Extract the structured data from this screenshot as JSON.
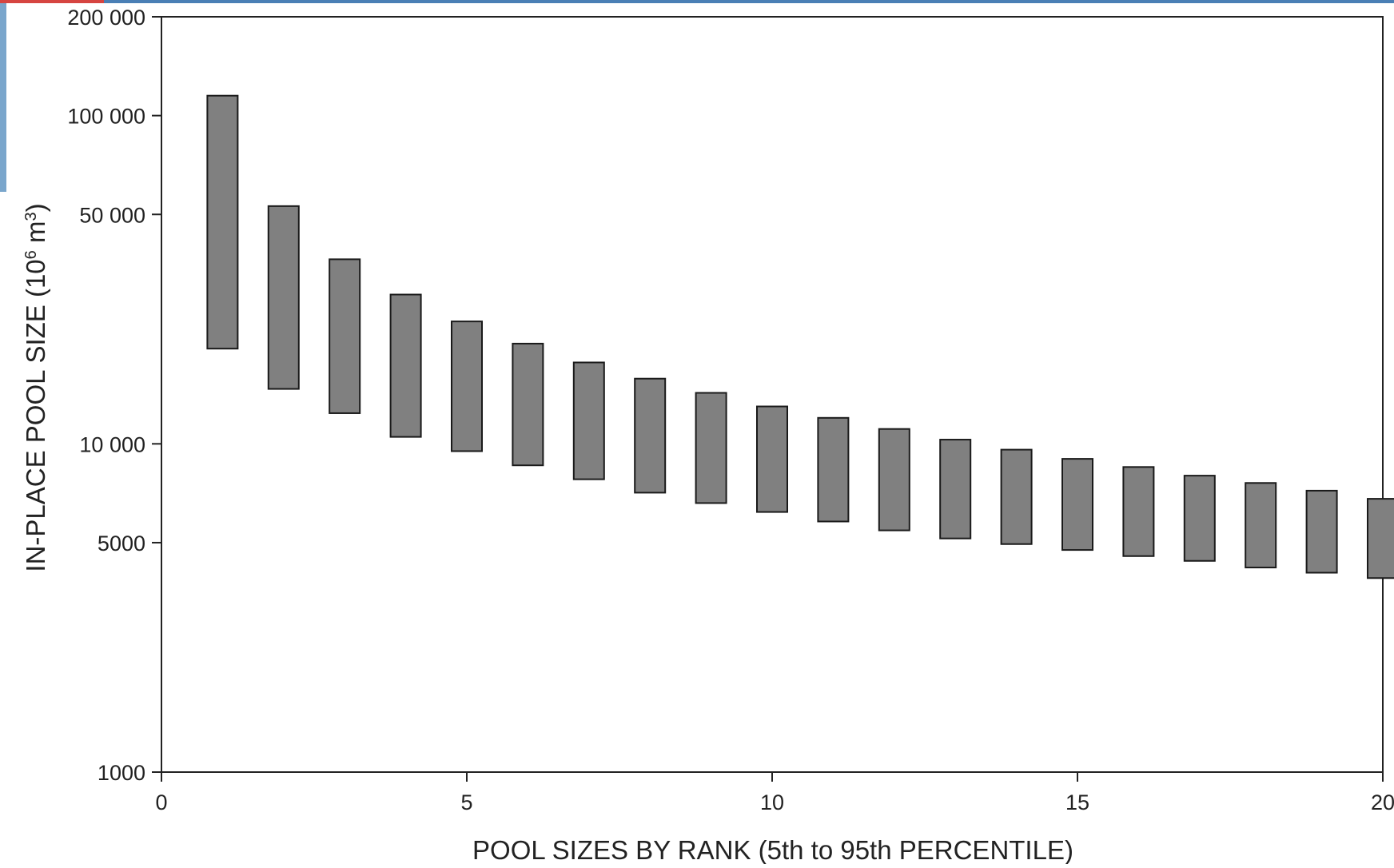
{
  "chart_data": {
    "type": "bar",
    "subtype": "floating-range",
    "xlabel": "POOL SIZES BY RANK  (5th to 95th PERCENTILE)",
    "ylabel": "IN-PLACE POOL SIZE (10⁶ m³)",
    "ylabel_parts": {
      "main": "IN-PLACE POOL SIZE (10",
      "sup1": "6",
      "mid": " m",
      "sup2": "3",
      "end": ")"
    },
    "x_scale": "linear",
    "y_scale": "log",
    "xlim": [
      0,
      20
    ],
    "ylim": [
      1000,
      200000
    ],
    "x_ticks": [
      {
        "value": 0,
        "label": "0"
      },
      {
        "value": 5,
        "label": "5"
      },
      {
        "value": 10,
        "label": "10"
      },
      {
        "value": 15,
        "label": "15"
      },
      {
        "value": 20,
        "label": "20"
      }
    ],
    "y_ticks": [
      {
        "value": 1000,
        "label": "1000"
      },
      {
        "value": 5000,
        "label": "5000"
      },
      {
        "value": 10000,
        "label": "10 000"
      },
      {
        "value": 50000,
        "label": "50 000"
      },
      {
        "value": 100000,
        "label": "100 000"
      },
      {
        "value": 200000,
        "label": "200 000"
      }
    ],
    "grid": false,
    "legend": "none",
    "bar_color": "#808080",
    "bar_edge_color": "#1a1a1a",
    "bars": [
      {
        "rank": 1,
        "low": 19500,
        "high": 115000
      },
      {
        "rank": 2,
        "low": 14700,
        "high": 53000
      },
      {
        "rank": 3,
        "low": 12400,
        "high": 36500
      },
      {
        "rank": 4,
        "low": 10500,
        "high": 28500
      },
      {
        "rank": 5,
        "low": 9500,
        "high": 23600
      },
      {
        "rank": 6,
        "low": 8600,
        "high": 20200
      },
      {
        "rank": 7,
        "low": 7800,
        "high": 17700
      },
      {
        "rank": 8,
        "low": 7100,
        "high": 15800
      },
      {
        "rank": 9,
        "low": 6600,
        "high": 14300
      },
      {
        "rank": 10,
        "low": 6200,
        "high": 13000
      },
      {
        "rank": 11,
        "low": 5800,
        "high": 12000
      },
      {
        "rank": 12,
        "low": 5450,
        "high": 11100
      },
      {
        "rank": 13,
        "low": 5150,
        "high": 10300
      },
      {
        "rank": 14,
        "low": 4950,
        "high": 9600
      },
      {
        "rank": 15,
        "low": 4750,
        "high": 9000
      },
      {
        "rank": 16,
        "low": 4550,
        "high": 8500
      },
      {
        "rank": 17,
        "low": 4400,
        "high": 8000
      },
      {
        "rank": 18,
        "low": 4200,
        "high": 7600
      },
      {
        "rank": 19,
        "low": 4050,
        "high": 7200
      },
      {
        "rank": 20,
        "low": 3900,
        "high": 6800
      }
    ]
  }
}
